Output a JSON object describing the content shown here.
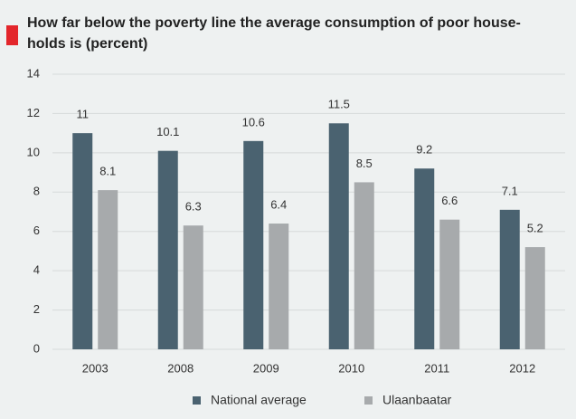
{
  "chart_data": {
    "type": "bar",
    "title": [
      "How far below the poverty line the average consumption of  poor house-",
      "holds is (percent)"
    ],
    "categories": [
      "2003",
      "2008",
      "2009",
      "2010",
      "2011",
      "2012"
    ],
    "series": [
      {
        "name": "National average",
        "color": "#4a6270",
        "values": [
          11,
          10.1,
          10.6,
          11.5,
          9.2,
          7.1
        ]
      },
      {
        "name": "Ulaanbaatar",
        "color": "#a7aaac",
        "values": [
          8.1,
          6.3,
          6.4,
          8.5,
          6.6,
          5.2
        ]
      }
    ],
    "ylim": [
      0,
      14
    ],
    "yticks": [
      0,
      2,
      4,
      6,
      8,
      10,
      12,
      14
    ],
    "grid": true,
    "legend": "bottom"
  }
}
